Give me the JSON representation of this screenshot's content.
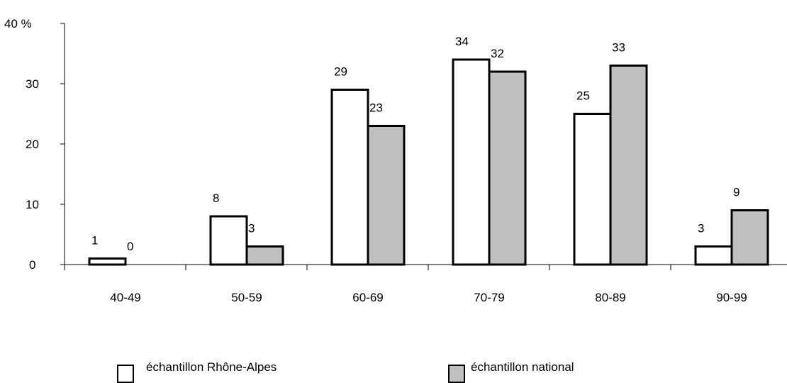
{
  "chart_data": {
    "type": "bar",
    "categories": [
      "40-49",
      "50-59",
      "60-69",
      "70-79",
      "80-89",
      "90-99"
    ],
    "series": [
      {
        "name": "échantillon Rhône-Alpes",
        "values": [
          1,
          8,
          29,
          34,
          25,
          3
        ],
        "color": "#ffffff"
      },
      {
        "name": "échantillon national",
        "values": [
          0,
          3,
          23,
          32,
          33,
          9
        ],
        "color": "#c0c0c0"
      }
    ],
    "yticks": [
      {
        "value": 0,
        "label": "0"
      },
      {
        "value": 10,
        "label": "10"
      },
      {
        "value": 20,
        "label": "20"
      },
      {
        "value": 30,
        "label": "30"
      },
      {
        "value": 40,
        "label": "40 %"
      }
    ],
    "ylim": [
      0,
      40
    ],
    "grid": false,
    "legend_position": "bottom",
    "bar_outline_color": "#000000"
  }
}
